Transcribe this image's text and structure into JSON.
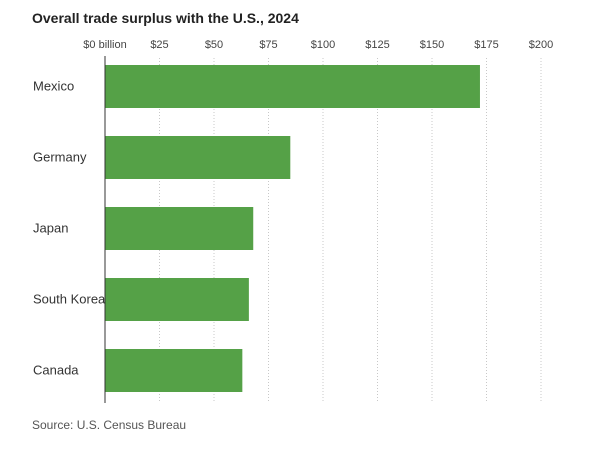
{
  "chart_data": {
    "type": "bar",
    "orientation": "horizontal",
    "title": "Overall trade surplus with the U.S., 2024",
    "categories": [
      "Mexico",
      "Germany",
      "Japan",
      "South Korea",
      "Canada"
    ],
    "values": [
      172,
      85,
      68,
      66,
      63
    ],
    "xlim": [
      0,
      200
    ],
    "xticks": [
      0,
      25,
      50,
      75,
      100,
      125,
      150,
      175,
      200
    ],
    "xtick_labels": [
      "$0 billion",
      "$25",
      "$50",
      "$75",
      "$100",
      "$125",
      "$150",
      "$175",
      "$200"
    ],
    "xlabel": "",
    "ylabel": "",
    "grid": "vertical-dotted",
    "bar_color": "#55a147",
    "source": "Source: U.S. Census Bureau"
  }
}
